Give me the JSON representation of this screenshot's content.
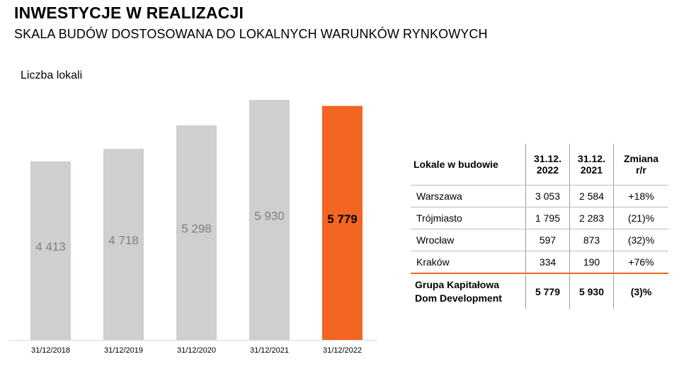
{
  "header": {
    "title": "INWESTYCJE W REALIZACJI",
    "subtitle": "SKALA BUDÓW DOSTOSOWANA DO LOKALNYCH WARUNKÓW RYNKOWYCH"
  },
  "chart_data": {
    "type": "bar",
    "title": "INWESTYCJE W REALIZACJI",
    "subtitle": "SKALA BUDÓW DOSTOSOWANA DO LOKALNYCH WARUNKÓW RYNKOWYCH",
    "ylabel": "Liczba lokali",
    "xlabel": "",
    "categories": [
      "31/12/2018",
      "31/12/2019",
      "31/12/2020",
      "31/12/2021",
      "31/12/2022"
    ],
    "values": [
      4413,
      4718,
      5298,
      5930,
      5779
    ],
    "value_labels": [
      "4 413",
      "4 718",
      "5 298",
      "5 930",
      "5 779"
    ],
    "ylim": [
      0,
      5930
    ],
    "grid": false,
    "colors": {
      "default_bar": "#d0cece",
      "highlight_bar": "#f26522",
      "default_label": "#7f7f7f",
      "highlight_label": "#000000"
    },
    "highlight_index": 4
  },
  "table": {
    "headers": {
      "name": "Lokale w budowie",
      "col1": [
        "31.12.",
        "2022"
      ],
      "col2": [
        "31.12.",
        "2021"
      ],
      "col3": [
        "Zmiana",
        "r/r"
      ]
    },
    "rows": [
      {
        "name": "Warszawa",
        "v2022": "3 053",
        "v2021": "2 584",
        "change": "+18%"
      },
      {
        "name": "Trójmiasto",
        "v2022": "1 795",
        "v2021": "2 283",
        "change": "(21)%"
      },
      {
        "name": "Wrocław",
        "v2022": "597",
        "v2021": "873",
        "change": "(32)%"
      },
      {
        "name": "Kraków",
        "v2022": "334",
        "v2021": "190",
        "change": "+76%"
      }
    ],
    "total": {
      "name": [
        "Grupa Kapitałowa",
        "Dom Development"
      ],
      "v2022": "5 779",
      "v2021": "5 930",
      "change": "(3)%"
    }
  }
}
